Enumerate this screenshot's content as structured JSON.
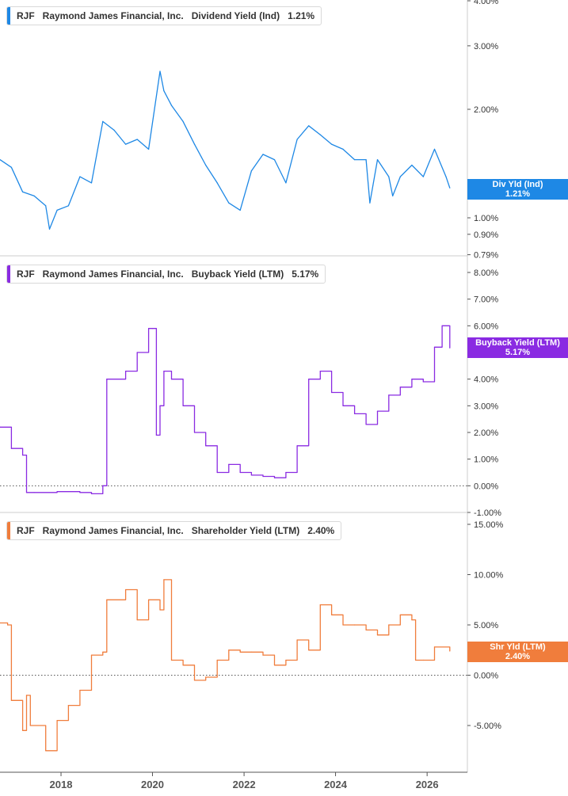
{
  "chart_data": [
    {
      "type": "line",
      "ticker": "RJF",
      "company": "Raymond James Financial, Inc.",
      "metric": "Dividend Yield (Ind)",
      "last_value": "1.21%",
      "tag_label": "Div Yld (Ind)",
      "color": "#1e88e5",
      "scale": "log",
      "ylim": [
        0.79,
        4.0
      ],
      "y_ticks": [
        {
          "v": 4.0,
          "label": "4.00%"
        },
        {
          "v": 3.0,
          "label": "3.00%"
        },
        {
          "v": 2.0,
          "label": "2.00%"
        },
        {
          "v": 1.0,
          "label": "1.00%"
        },
        {
          "v": 0.9,
          "label": "0.90%"
        },
        {
          "v": 0.79,
          "label": "0.79%"
        }
      ],
      "zero_line": false,
      "x": [
        "2016-09",
        "2016-12",
        "2017-03",
        "2017-06",
        "2017-09",
        "2017-10",
        "2017-12",
        "2018-03",
        "2018-06",
        "2018-09",
        "2018-12",
        "2019-03",
        "2019-06",
        "2019-09",
        "2019-12",
        "2020-03",
        "2020-04",
        "2020-06",
        "2020-09",
        "2020-12",
        "2021-03",
        "2021-06",
        "2021-09",
        "2021-12",
        "2022-03",
        "2022-06",
        "2022-09",
        "2022-12",
        "2023-03",
        "2023-06",
        "2023-09",
        "2023-12",
        "2024-03",
        "2024-06",
        "2024-09",
        "2024-10",
        "2024-12",
        "2025-03",
        "2025-04",
        "2025-06",
        "2025-09",
        "2025-12",
        "2026-03",
        "2026-06",
        "2026-07"
      ],
      "y": [
        1.45,
        1.38,
        1.18,
        1.15,
        1.08,
        0.93,
        1.05,
        1.08,
        1.3,
        1.25,
        1.85,
        1.75,
        1.6,
        1.65,
        1.55,
        2.55,
        2.25,
        2.05,
        1.85,
        1.6,
        1.4,
        1.25,
        1.1,
        1.05,
        1.35,
        1.5,
        1.45,
        1.25,
        1.65,
        1.8,
        1.7,
        1.6,
        1.55,
        1.45,
        1.45,
        1.1,
        1.45,
        1.3,
        1.15,
        1.3,
        1.4,
        1.3,
        1.55,
        1.3,
        1.21
      ]
    },
    {
      "type": "line",
      "ticker": "RJF",
      "company": "Raymond James Financial, Inc.",
      "metric": "Buyback Yield (LTM)",
      "last_value": "5.17%",
      "tag_label": "Buyback Yield (LTM)",
      "color": "#8a2be2",
      "scale": "linear",
      "ylim": [
        -1.0,
        8.0
      ],
      "y_ticks": [
        {
          "v": 8,
          "label": "8.00%"
        },
        {
          "v": 7,
          "label": "7.00%"
        },
        {
          "v": 6,
          "label": "6.00%"
        },
        {
          "v": 5,
          "label": "5.00%"
        },
        {
          "v": 4,
          "label": "4.00%"
        },
        {
          "v": 3,
          "label": "3.00%"
        },
        {
          "v": 2,
          "label": "2.00%"
        },
        {
          "v": 1,
          "label": "1.00%"
        },
        {
          "v": 0,
          "label": "0.00%"
        },
        {
          "v": -1,
          "label": "-1.00%"
        }
      ],
      "zero_line": true,
      "x": [
        "2016-09",
        "2016-12",
        "2017-03",
        "2017-04",
        "2017-06",
        "2017-12",
        "2018-06",
        "2018-09",
        "2018-12",
        "2019-01",
        "2019-06",
        "2019-09",
        "2019-12",
        "2020-01",
        "2020-02",
        "2020-03",
        "2020-04",
        "2020-06",
        "2020-09",
        "2020-12",
        "2021-03",
        "2021-06",
        "2021-09",
        "2021-12",
        "2022-03",
        "2022-06",
        "2022-09",
        "2022-12",
        "2023-03",
        "2023-06",
        "2023-09",
        "2023-12",
        "2024-03",
        "2024-06",
        "2024-09",
        "2024-12",
        "2025-03",
        "2025-06",
        "2025-09",
        "2025-12",
        "2026-03",
        "2026-05",
        "2026-07"
      ],
      "y": [
        2.2,
        1.4,
        1.15,
        -0.25,
        -0.25,
        -0.22,
        -0.25,
        -0.3,
        0.0,
        4.0,
        4.3,
        5.0,
        5.9,
        5.9,
        1.9,
        3.0,
        4.3,
        4.0,
        3.0,
        2.0,
        1.5,
        0.5,
        0.8,
        0.5,
        0.4,
        0.35,
        0.3,
        0.5,
        1.5,
        4.0,
        4.3,
        3.5,
        3.0,
        2.7,
        2.3,
        2.8,
        3.4,
        3.7,
        4.0,
        3.9,
        5.2,
        6.0,
        5.17
      ]
    },
    {
      "type": "line",
      "ticker": "RJF",
      "company": "Raymond James Financial, Inc.",
      "metric": "Shareholder Yield (LTM)",
      "last_value": "2.40%",
      "tag_label": "Shr Yld (LTM)",
      "color": "#f07d3c",
      "scale": "linear",
      "ylim": [
        -8.5,
        15.0
      ],
      "y_ticks": [
        {
          "v": 15,
          "label": "15.00%"
        },
        {
          "v": 10,
          "label": "10.00%"
        },
        {
          "v": 5,
          "label": "5.00%"
        },
        {
          "v": 0,
          "label": "0.00%"
        },
        {
          "v": -5,
          "label": "-5.00%"
        }
      ],
      "zero_line": true,
      "x": [
        "2016-09",
        "2016-11",
        "2016-12",
        "2017-03",
        "2017-04",
        "2017-05",
        "2017-09",
        "2017-12",
        "2018-03",
        "2018-06",
        "2018-09",
        "2018-12",
        "2019-01",
        "2019-06",
        "2019-09",
        "2019-12",
        "2020-03",
        "2020-04",
        "2020-06",
        "2020-09",
        "2020-12",
        "2021-03",
        "2021-06",
        "2021-09",
        "2021-12",
        "2022-03",
        "2022-06",
        "2022-09",
        "2022-12",
        "2023-03",
        "2023-06",
        "2023-09",
        "2023-12",
        "2024-03",
        "2024-06",
        "2024-09",
        "2024-12",
        "2025-03",
        "2025-06",
        "2025-09",
        "2025-10",
        "2025-12",
        "2026-03",
        "2026-07"
      ],
      "y": [
        5.2,
        5.0,
        -2.5,
        -5.5,
        -2.0,
        -5.0,
        -7.5,
        -4.5,
        -3.0,
        -1.5,
        2.0,
        2.3,
        7.5,
        8.5,
        5.5,
        7.5,
        6.5,
        9.5,
        1.5,
        1.0,
        -0.5,
        -0.2,
        1.5,
        2.5,
        2.3,
        2.3,
        2.0,
        1.0,
        1.5,
        3.5,
        2.5,
        7.0,
        6.0,
        5.0,
        5.0,
        4.5,
        4.0,
        5.0,
        6.0,
        5.5,
        1.5,
        1.5,
        2.8,
        2.4
      ]
    }
  ],
  "x_axis": {
    "labels": [
      {
        "x": "2018-01",
        "label": "2018"
      },
      {
        "x": "2020-01",
        "label": "2020"
      },
      {
        "x": "2022-01",
        "label": "2022"
      },
      {
        "x": "2024-01",
        "label": "2024"
      },
      {
        "x": "2026-01",
        "label": "2026"
      }
    ]
  },
  "colors": {
    "axis": "#555555",
    "divider": "#cccccc",
    "tick_text": "#333333"
  }
}
